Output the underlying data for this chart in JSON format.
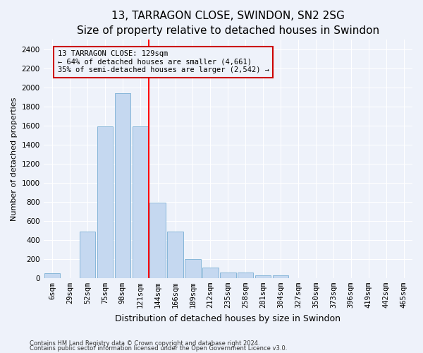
{
  "title": "13, TARRAGON CLOSE, SWINDON, SN2 2SG",
  "subtitle": "Size of property relative to detached houses in Swindon",
  "xlabel": "Distribution of detached houses by size in Swindon",
  "ylabel": "Number of detached properties",
  "categories": [
    "6sqm",
    "29sqm",
    "52sqm",
    "75sqm",
    "98sqm",
    "121sqm",
    "144sqm",
    "166sqm",
    "189sqm",
    "212sqm",
    "235sqm",
    "258sqm",
    "281sqm",
    "304sqm",
    "327sqm",
    "350sqm",
    "373sqm",
    "396sqm",
    "419sqm",
    "442sqm",
    "465sqm"
  ],
  "values": [
    50,
    0,
    490,
    1590,
    1940,
    1590,
    790,
    490,
    195,
    110,
    55,
    55,
    25,
    25,
    0,
    0,
    0,
    0,
    0,
    0,
    0
  ],
  "bar_color": "#c5d8f0",
  "bar_edge_color": "#7aafd4",
  "ref_line_index": 5.5,
  "annotation_line1": "13 TARRAGON CLOSE: 129sqm",
  "annotation_line2": "← 64% of detached houses are smaller (4,661)",
  "annotation_line3": "35% of semi-detached houses are larger (2,542) →",
  "annotation_box_color": "#cc0000",
  "ylim": [
    0,
    2500
  ],
  "yticks": [
    0,
    200,
    400,
    600,
    800,
    1000,
    1200,
    1400,
    1600,
    1800,
    2000,
    2200,
    2400
  ],
  "footnote1": "Contains HM Land Registry data © Crown copyright and database right 2024.",
  "footnote2": "Contains public sector information licensed under the Open Government Licence v3.0.",
  "background_color": "#eef2fa",
  "grid_color": "#ffffff",
  "title_fontsize": 11,
  "xlabel_fontsize": 9,
  "ylabel_fontsize": 8,
  "tick_fontsize": 7.5,
  "annot_fontsize": 7.5,
  "footnote_fontsize": 6
}
